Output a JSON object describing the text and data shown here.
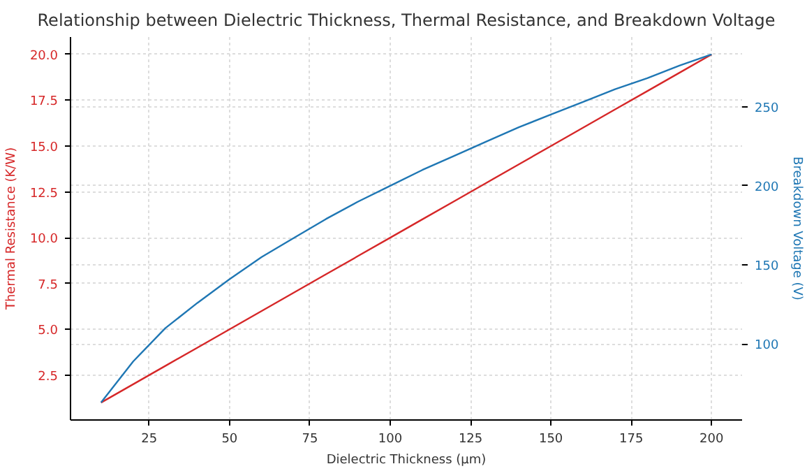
{
  "chart_data": {
    "type": "line",
    "title": "Relationship between Dielectric Thickness, Thermal Resistance, and Breakdown Voltage",
    "xlabel": "Dielectric Thickness (µm)",
    "ylabel": "Thermal Resistance (K/W)",
    "y2label": "Breakdown Voltage (V)",
    "x": [
      10,
      20,
      30,
      40,
      50,
      60,
      70,
      80,
      90,
      100,
      110,
      120,
      130,
      140,
      150,
      160,
      170,
      180,
      190,
      200
    ],
    "series": [
      {
        "color": "#d62728",
        "values": [
          1,
          2,
          3,
          4,
          5,
          6,
          7,
          8,
          9,
          10,
          11,
          12,
          13,
          14,
          15,
          16,
          17,
          18,
          19,
          20
        ]
      },
      {
        "color": "#1f77b4",
        "axis": "y2",
        "values": [
          63,
          89,
          110,
          126,
          141,
          155,
          167,
          179,
          190,
          200,
          210,
          219,
          228,
          237,
          245,
          253,
          261,
          268,
          276,
          283
        ]
      }
    ],
    "xlim": [
      0.5,
      209.5
    ],
    "xticks": [
      25,
      50,
      75,
      100,
      125,
      150,
      175,
      200
    ],
    "ylim": [
      0.05,
      20.95
    ],
    "yticks": [
      {
        "value": 2.5,
        "label": "2.5"
      },
      {
        "value": 5,
        "label": "5.0"
      },
      {
        "value": 7.5,
        "label": "7.5"
      },
      {
        "value": 10,
        "label": "10.0"
      },
      {
        "value": 12.5,
        "label": "12.5"
      },
      {
        "value": 15,
        "label": "15.0"
      },
      {
        "value": 17.5,
        "label": "17.5"
      },
      {
        "value": 20,
        "label": "20.0"
      }
    ],
    "y2lim": [
      52,
      294
    ],
    "y2ticks": [
      100,
      150,
      200,
      250
    ],
    "grid": true,
    "marker": "none",
    "line_style": "solid"
  }
}
